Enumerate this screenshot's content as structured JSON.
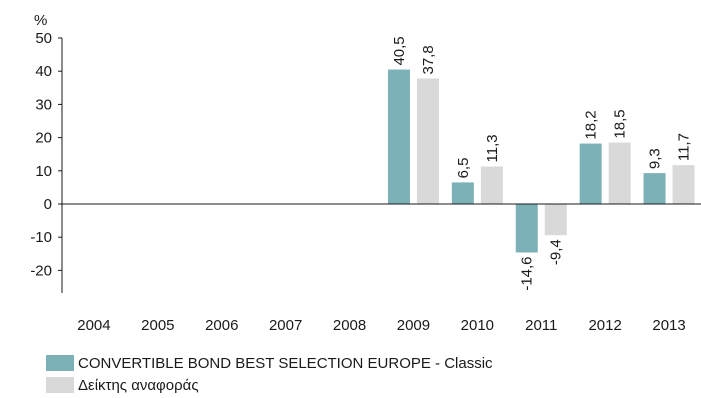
{
  "colors": {
    "fund": "#7bb1b7",
    "benchmark": "#d9d9d9",
    "axis": "#1a1a1a",
    "text": "#1a1a1a"
  },
  "chart_data": {
    "type": "bar",
    "ylabel": "%",
    "xlabel": "",
    "title": "",
    "ylim": [
      -30,
      50
    ],
    "yticks": [
      -20,
      -10,
      0,
      10,
      20,
      30,
      40,
      50
    ],
    "grid": false,
    "legend": "bottom-left",
    "categories": [
      "2004",
      "2005",
      "2006",
      "2007",
      "2008",
      "2009",
      "2010",
      "2011",
      "2012",
      "2013"
    ],
    "series": [
      {
        "name": "CONVERTIBLE BOND BEST SELECTION EUROPE - Classic",
        "values": [
          null,
          null,
          null,
          null,
          null,
          40.5,
          6.5,
          -14.6,
          18.2,
          9.3
        ],
        "labels": [
          "",
          "",
          "",
          "",
          "",
          "40,5",
          "6,5",
          "-14,6",
          "18,2",
          "9,3"
        ]
      },
      {
        "name": "Δείκτης αναφοράς",
        "values": [
          null,
          null,
          null,
          null,
          null,
          37.8,
          11.3,
          -9.4,
          18.5,
          11.7
        ],
        "labels": [
          "",
          "",
          "",
          "",
          "",
          "37,8",
          "11,3",
          "-9,4",
          "18,5",
          "11,7"
        ]
      }
    ]
  }
}
